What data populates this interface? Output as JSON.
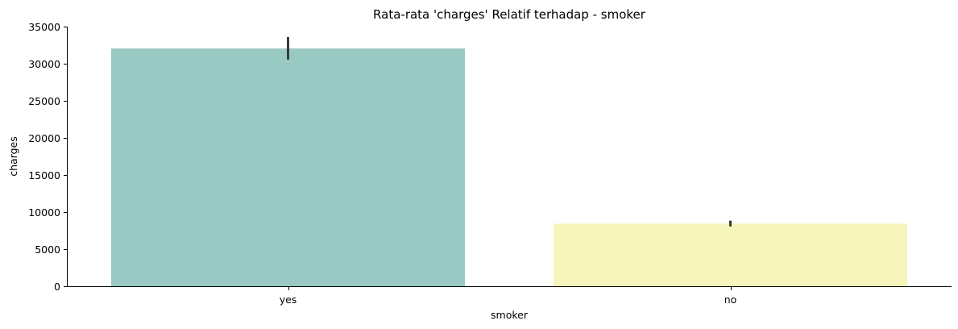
{
  "chart_data": {
    "type": "bar",
    "title": "Rata-rata 'charges' Relatif terhadap - smoker",
    "xlabel": "smoker",
    "ylabel": "charges",
    "categories": [
      "yes",
      "no"
    ],
    "values": [
      32050,
      8434
    ],
    "error_bars": [
      {
        "low": 30550,
        "high": 33600
      },
      {
        "low": 8060,
        "high": 8840
      }
    ],
    "colors": [
      "#98c9c2",
      "#f6f5bb"
    ],
    "error_bar_color": "#3a3a3a",
    "ylim": [
      0,
      35000
    ],
    "yticks": [
      0,
      5000,
      10000,
      15000,
      20000,
      25000,
      30000,
      35000
    ],
    "ytick_labels": [
      "0",
      "5000",
      "10000",
      "15000",
      "20000",
      "25000",
      "30000",
      "35000"
    ],
    "grid": false,
    "legend": "none"
  }
}
